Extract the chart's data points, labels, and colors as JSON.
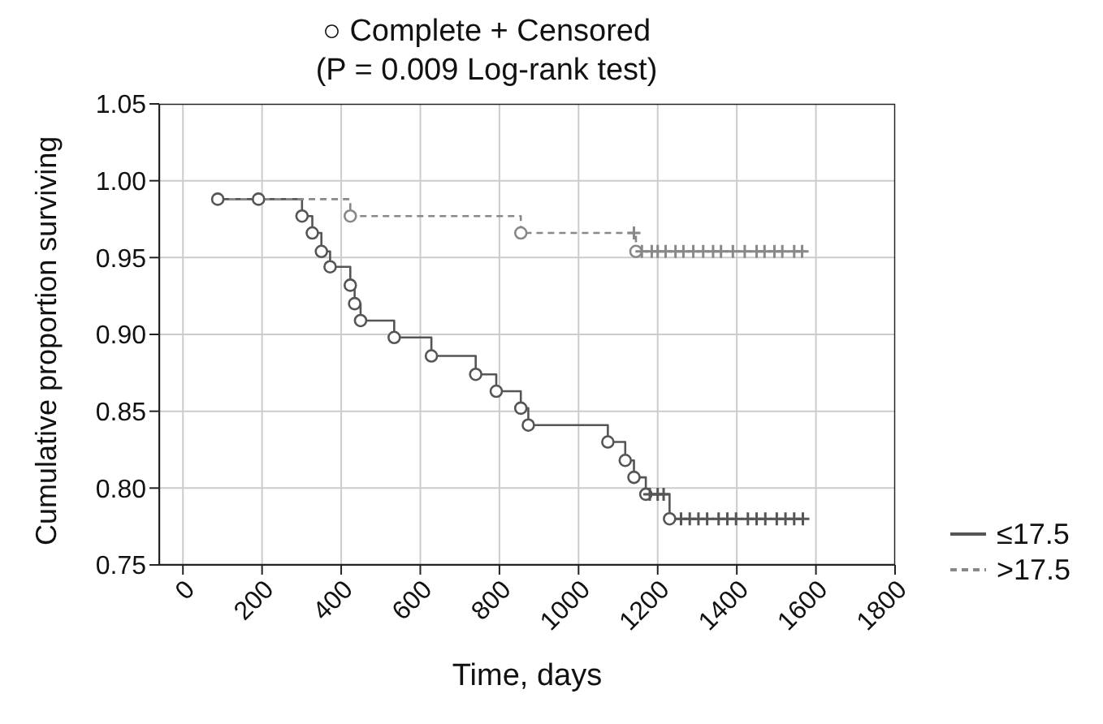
{
  "chart_data": {
    "type": "step",
    "title": "○ Complete + Censored",
    "subtitle": "(P = 0.009 Log-rank test)",
    "xlabel": "Time, days",
    "ylabel": "Cumulative proportion surviving",
    "xlim": [
      -60,
      1800
    ],
    "xticks": [
      0,
      200,
      400,
      600,
      800,
      1000,
      1200,
      1400,
      1600,
      1800
    ],
    "ylim": [
      0.75,
      1.05
    ],
    "yticks": [
      {
        "value": 0.75,
        "label": "0.75"
      },
      {
        "value": 0.8,
        "label": "0.80"
      },
      {
        "value": 0.85,
        "label": "0.85"
      },
      {
        "value": 0.9,
        "label": "0.90"
      },
      {
        "value": 0.95,
        "label": "0.95"
      },
      {
        "value": 1.0,
        "label": "1.00"
      },
      {
        "value": 1.05,
        "label": "1.05"
      }
    ],
    "grid": true,
    "legend": "bottom right",
    "series": [
      {
        "name": "≤17.5",
        "color": "#555555",
        "line_style": "solid",
        "marker": "none",
        "x": [
          88,
          191,
          301,
          327,
          350,
          372,
          423,
          434,
          449,
          534,
          628,
          740,
          792,
          854,
          873,
          1074,
          1118,
          1140,
          1170,
          1230,
          1567
        ],
        "values": [
          0.988,
          0.988,
          0.977,
          0.966,
          0.954,
          0.944,
          0.932,
          0.92,
          0.909,
          0.898,
          0.886,
          0.874,
          0.863,
          0.852,
          0.841,
          0.83,
          0.818,
          0.807,
          0.796,
          0.78,
          0.78
        ]
      },
      {
        "type": "scatter",
        "color": "#555555",
        "marker": "circle",
        "x": [
          88,
          191,
          301,
          327,
          350,
          372,
          423,
          434,
          449,
          534,
          628,
          740,
          792,
          854,
          873,
          1074,
          1118,
          1140,
          1170,
          1230
        ],
        "values": [
          0.988,
          0.988,
          0.977,
          0.966,
          0.954,
          0.944,
          0.932,
          0.92,
          0.909,
          0.898,
          0.886,
          0.874,
          0.863,
          0.852,
          0.841,
          0.83,
          0.818,
          0.807,
          0.796,
          0.78
        ]
      },
      {
        "type": "scatter",
        "color": "#555555",
        "marker": "cross",
        "x": [
          1180,
          1200,
          1215,
          1259,
          1281,
          1303,
          1325,
          1354,
          1376,
          1398,
          1428,
          1450,
          1472,
          1501,
          1523,
          1545,
          1567
        ],
        "values": [
          0.796,
          0.796,
          0.796,
          0.78,
          0.78,
          0.78,
          0.78,
          0.78,
          0.78,
          0.78,
          0.78,
          0.78,
          0.78,
          0.78,
          0.78,
          0.78,
          0.78
        ]
      },
      {
        "name": ">17.5",
        "color": "#888888",
        "line_style": "dashed",
        "marker": "none",
        "x": [
          88,
          423,
          854,
          1145,
          1575
        ],
        "values": [
          0.988,
          0.977,
          0.966,
          0.954,
          0.954
        ]
      },
      {
        "type": "scatter",
        "color": "#888888",
        "marker": "circle",
        "x": [
          423,
          854,
          1145
        ],
        "values": [
          0.977,
          0.966,
          0.954
        ]
      },
      {
        "type": "scatter",
        "color": "#888888",
        "marker": "cross",
        "x": [
          1140,
          1160,
          1185,
          1200,
          1220,
          1245,
          1265,
          1290,
          1315,
          1340,
          1360,
          1390,
          1420,
          1450,
          1470,
          1495,
          1515,
          1545,
          1565
        ],
        "values": [
          0.966,
          0.954,
          0.954,
          0.954,
          0.954,
          0.954,
          0.954,
          0.954,
          0.954,
          0.954,
          0.954,
          0.954,
          0.954,
          0.954,
          0.954,
          0.954,
          0.954,
          0.954,
          0.954
        ]
      }
    ]
  }
}
